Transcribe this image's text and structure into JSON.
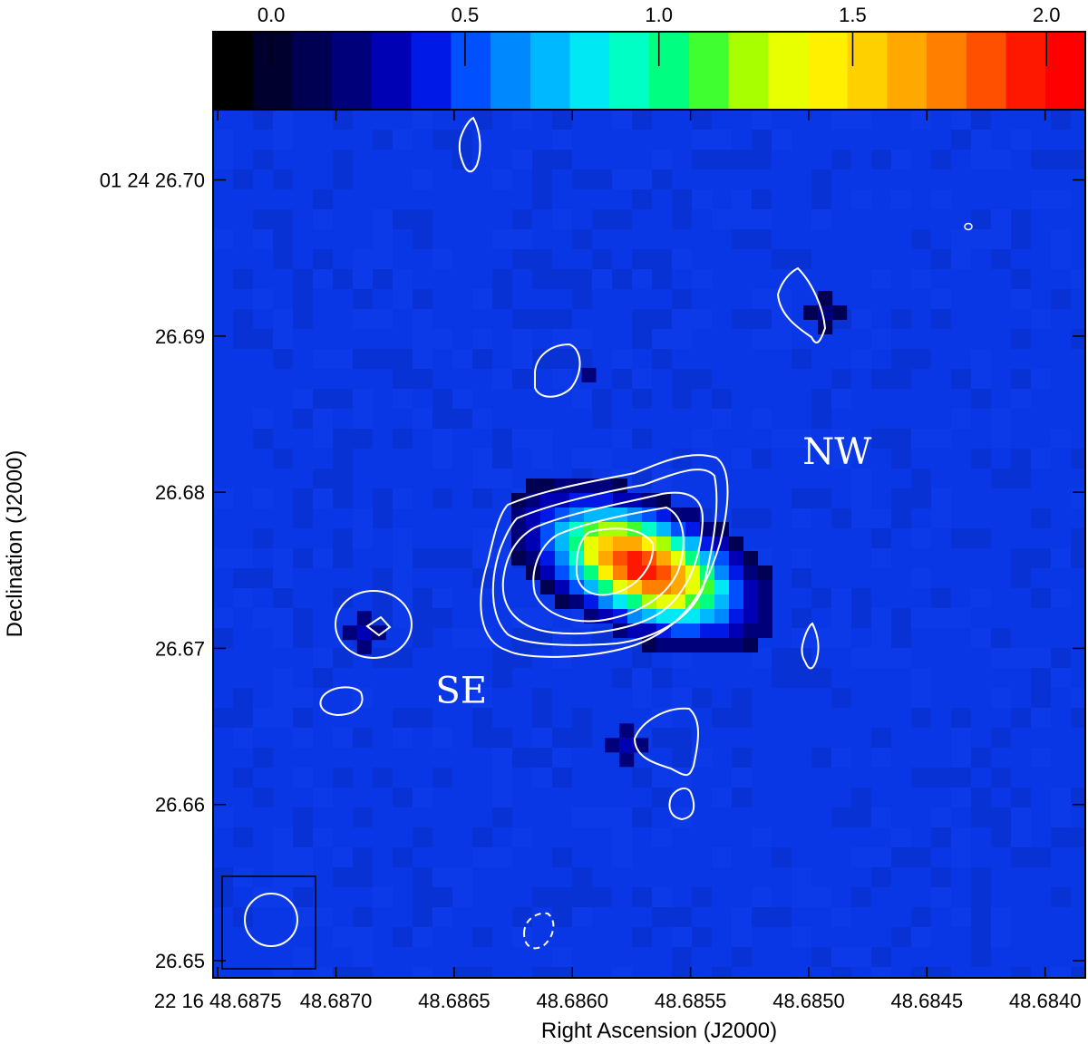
{
  "chart_data": {
    "type": "heatmap",
    "title": "",
    "xlabel": "Right Ascension (J2000)",
    "ylabel": "Declination (J2000)",
    "x_ticks": [
      {
        "value": 48.6875,
        "label": "22 16 48.6875"
      },
      {
        "value": 48.687,
        "label": "48.6870"
      },
      {
        "value": 48.6865,
        "label": "48.6865"
      },
      {
        "value": 48.686,
        "label": "48.6860"
      },
      {
        "value": 48.6855,
        "label": "48.6855"
      },
      {
        "value": 48.685,
        "label": "48.6850"
      },
      {
        "value": 48.6845,
        "label": "48.6845"
      },
      {
        "value": 48.684,
        "label": "48.6840"
      }
    ],
    "xlim": [
      48.68752,
      48.68383
    ],
    "y_ticks": [
      {
        "value": 26.7,
        "label": "01 24 26.70"
      },
      {
        "value": 26.69,
        "label": "26.69"
      },
      {
        "value": 26.68,
        "label": "26.68"
      },
      {
        "value": 26.67,
        "label": "26.67"
      },
      {
        "value": 26.66,
        "label": "26.66"
      },
      {
        "value": 26.65,
        "label": "26.65"
      }
    ],
    "ylim": [
      26.6489,
      26.7045
    ],
    "colorbar": {
      "ticks": [
        {
          "value": 0.0,
          "label": "0.0"
        },
        {
          "value": 0.5,
          "label": "0.5"
        },
        {
          "value": 1.0,
          "label": "1.0"
        },
        {
          "value": 1.5,
          "label": "1.5"
        },
        {
          "value": 2.0,
          "label": "2.0"
        }
      ],
      "range": [
        -0.15,
        2.1
      ],
      "colors": [
        "#000000",
        "#00002e",
        "#000052",
        "#00007a",
        "#0000b4",
        "#0019e6",
        "#0050ff",
        "#0088ff",
        "#00b8ff",
        "#00e8f4",
        "#00ffc4",
        "#00ff80",
        "#40ff30",
        "#a8ff00",
        "#e8ff00",
        "#fff000",
        "#ffd000",
        "#ffa800",
        "#ff8000",
        "#ff5000",
        "#ff1800",
        "#ff0000"
      ]
    },
    "background_color": "#0a37e6",
    "sources": [
      {
        "ra": 48.6857,
        "dec": 26.6752,
        "peak": 2.0,
        "sigma_ra": 0.00034,
        "sigma_dec": 0.0025
      },
      {
        "ra": 48.68688,
        "dec": 26.671,
        "peak": 0.3
      },
      {
        "ra": 48.68577,
        "dec": 26.6638,
        "peak": 0.3
      },
      {
        "ra": 48.68493,
        "dec": 26.6915,
        "peak": 0.25
      },
      {
        "ra": 48.68593,
        "dec": 26.6875,
        "peak": 0.22
      }
    ],
    "annotations": [
      {
        "text": "NW",
        "ra": 48.68488,
        "dec": 26.6818
      },
      {
        "text": "SE",
        "ra": 48.68647,
        "dec": 26.6665
      }
    ],
    "beam": {
      "shape": "circle",
      "ra": 48.6873,
      "dec": 26.6522
    }
  }
}
